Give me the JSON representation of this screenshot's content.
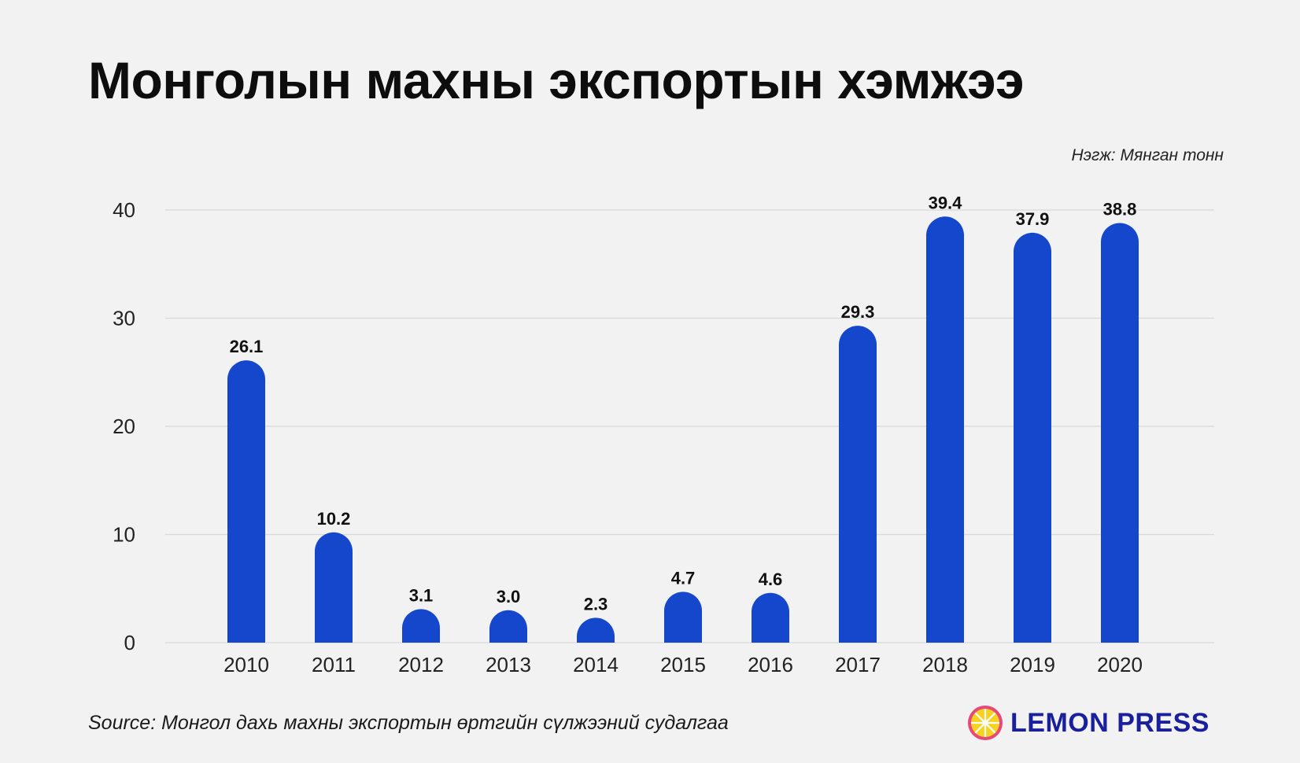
{
  "title": "Монголын махны экспортын хэмжээ",
  "unit_note": "Нэгж: Мянган тонн",
  "source": "Source: Монгол дахь махны экспортын өртгийн сүлжээний судалгаа",
  "logo": {
    "text": "LEMON PRESS",
    "icon": "lemon-slice-icon"
  },
  "colors": {
    "bar": "#1447cc",
    "grid": "#d9d9d9",
    "logo_text": "#1a1f9c",
    "logo_icon_fill": "#f7d21e",
    "logo_icon_ring": "#e8477a"
  },
  "chart_data": {
    "type": "bar",
    "categories": [
      "2010",
      "2011",
      "2012",
      "2013",
      "2014",
      "2015",
      "2016",
      "2017",
      "2018",
      "2019",
      "2020"
    ],
    "values": [
      26.1,
      10.2,
      3.1,
      3.0,
      2.3,
      4.7,
      4.6,
      29.3,
      39.4,
      37.9,
      38.8
    ],
    "value_labels": [
      "26.1",
      "10.2",
      "3.1",
      "3.0",
      "2.3",
      "4.7",
      "4.6",
      "29.3",
      "39.4",
      "37.9",
      "38.8"
    ],
    "ylim": [
      0,
      40
    ],
    "yticks": [
      0,
      10,
      20,
      30,
      40
    ],
    "grid": true,
    "legend": "none"
  }
}
